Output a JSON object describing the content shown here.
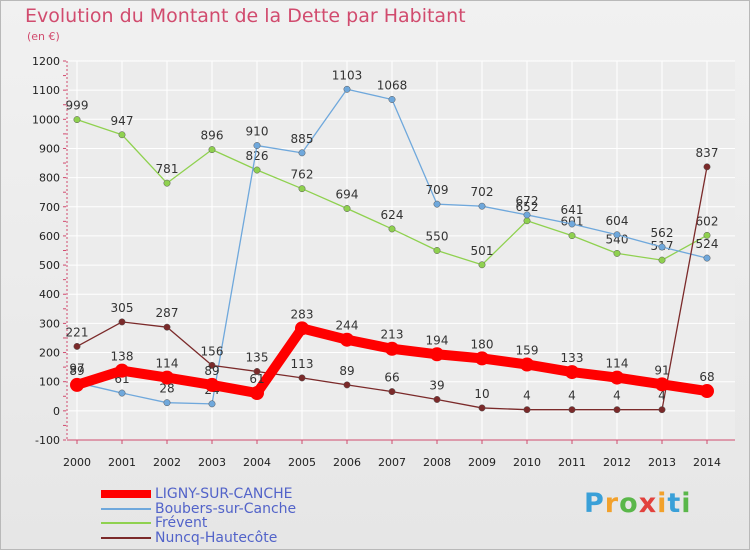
{
  "chart_data": {
    "type": "line",
    "title": "Evolution du Montant de la Dette par Habitant",
    "subtitle": "(en €)",
    "x": [
      "2000",
      "2001",
      "2002",
      "2003",
      "2004",
      "2005",
      "2006",
      "2007",
      "2008",
      "2009",
      "2010",
      "2011",
      "2012",
      "2013",
      "2014"
    ],
    "ylim": [
      -100,
      1200
    ],
    "yticks": [
      "-100",
      "0",
      "100",
      "200",
      "300",
      "400",
      "500",
      "600",
      "700",
      "800",
      "900",
      "1000",
      "1100",
      "1200"
    ],
    "grid": true,
    "legend_placement": "bottom-left",
    "series": [
      {
        "name": "LIGNY-SUR-CANCHE",
        "color": "#ff0000",
        "values": [
          89,
          138,
          114,
          89,
          61,
          283,
          244,
          213,
          194,
          180,
          159,
          133,
          114,
          91,
          68
        ],
        "labels": [
          "89",
          "138",
          "114",
          "89",
          "61",
          "283",
          "244",
          "213",
          "194",
          "180",
          "159",
          "133",
          "114",
          "91",
          "68"
        ]
      },
      {
        "name": "Boubers-sur-Canche",
        "color": "#6fa8dc",
        "values": [
          97,
          61,
          28,
          24,
          910,
          885,
          1103,
          1068,
          709,
          702,
          672,
          641,
          604,
          562,
          524
        ],
        "labels": [
          "97",
          "61",
          "28",
          "24",
          "910",
          "885",
          "1103",
          "1068",
          "709",
          "702",
          "672",
          "641",
          "604",
          "562",
          "524"
        ]
      },
      {
        "name": "Frévent",
        "color": "#8fd14f",
        "values": [
          999,
          947,
          781,
          896,
          826,
          762,
          694,
          624,
          550,
          501,
          652,
          601,
          540,
          517,
          602
        ],
        "labels": [
          "999",
          "947",
          "781",
          "896",
          "826",
          "762",
          "694",
          "624",
          "550",
          "501",
          "652",
          "601",
          "540",
          "517",
          "602"
        ]
      },
      {
        "name": "Nuncq-Hautecôte",
        "color": "#7b2a2a",
        "values": [
          221,
          305,
          287,
          156,
          135,
          113,
          89,
          66,
          39,
          10,
          4,
          4,
          4,
          4,
          837
        ],
        "labels": [
          "221",
          "305",
          "287",
          "156",
          "135",
          "113",
          "89",
          "66",
          "39",
          "10",
          "4",
          "4",
          "4",
          "4",
          "837"
        ]
      }
    ]
  },
  "logo": {
    "text": "Proxiti",
    "colors": [
      "#3aa0d8",
      "#f2a12b",
      "#5ab74a",
      "#e2413c",
      "#f2a12b",
      "#3aa0d8",
      "#5ab74a"
    ]
  }
}
